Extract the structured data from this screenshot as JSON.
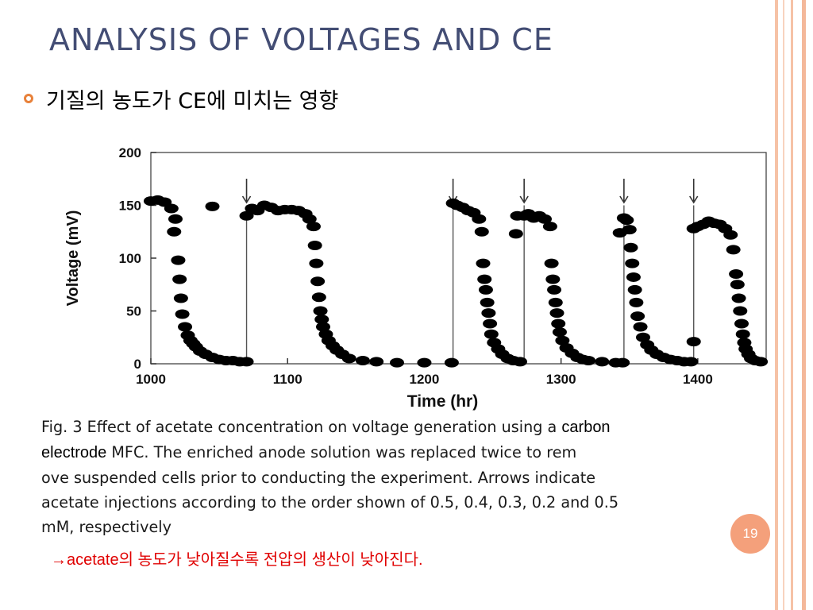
{
  "slide": {
    "title": "ANALYSIS OF VOLTAGES AND CE",
    "bullet": "기질의 농도가 CE에 미치는 영향",
    "caption_part1": "Fig. 3 Effect of acetate concentration on voltage generation using a ",
    "caption_emph1": "carbon",
    "caption_emph2": "electrode",
    "caption_part2": " MFC. The enriched anode solution was replaced twice to rem",
    "caption_part3": "ove suspended cells prior to conducting the experiment. Arrows indicate",
    "caption_part4": "acetate injections according to the order shown of 0.5, 0.4, 0.3, 0.2 and 0.5",
    "caption_part5": "mM, respectively",
    "conclusion_arrow": "→",
    "conclusion_text": "acetate의 농도가 낮아질수록 전압의 생산이 낮아진다.",
    "page_number": "19",
    "accent_color": "#e8813a",
    "title_color": "#434d74",
    "conclusion_color": "#e00000",
    "badge_color": "#f4a07b"
  },
  "chart_data": {
    "type": "scatter",
    "xlabel": "Time (hr)",
    "ylabel": "Voltage (mV)",
    "xlim": [
      1000,
      1450
    ],
    "ylim": [
      0,
      200
    ],
    "xticks": [
      1000,
      1100,
      1200,
      1300,
      1400
    ],
    "yticks": [
      0,
      50,
      100,
      150,
      200
    ],
    "grid": false,
    "injection_arrows_x": [
      1070,
      1221,
      1273,
      1346,
      1397
    ],
    "replacement_lines_x": [
      1070,
      1221,
      1273,
      1346,
      1397
    ],
    "series": [
      {
        "x": [
          1000,
          1005,
          1010,
          1015,
          1018,
          1020,
          1021,
          1022,
          1023,
          1025,
          1027,
          1029,
          1031,
          1033,
          1036,
          1040,
          1045,
          1050,
          1055,
          1060,
          1065,
          1070
        ],
        "y": [
          154,
          155,
          153,
          147,
          137,
          98,
          80,
          62,
          47,
          35,
          27,
          22,
          19,
          16,
          12,
          9,
          6,
          4,
          3,
          3,
          2,
          2
        ]
      },
      {
        "x": [
          1070,
          1074,
          1078,
          1083,
          1088,
          1093,
          1098,
          1103,
          1108,
          1113,
          1116,
          1119,
          1120,
          1121,
          1122,
          1123,
          1124,
          1125,
          1126,
          1128,
          1130,
          1133,
          1136,
          1140,
          1145,
          1155,
          1165,
          1180,
          1200,
          1220
        ],
        "y": [
          140,
          147,
          145,
          150,
          148,
          145,
          146,
          146,
          145,
          142,
          137,
          130,
          112,
          95,
          78,
          63,
          50,
          42,
          35,
          28,
          22,
          17,
          13,
          9,
          5,
          3,
          2,
          1,
          1,
          1
        ]
      },
      {
        "x": [
          1221,
          1224,
          1228,
          1232,
          1236,
          1240,
          1242,
          1243,
          1244,
          1245,
          1246,
          1247,
          1248,
          1249,
          1251,
          1254,
          1257,
          1261,
          1265,
          1270
        ],
        "y": [
          152,
          150,
          148,
          145,
          143,
          137,
          125,
          95,
          80,
          70,
          58,
          48,
          38,
          28,
          20,
          14,
          9,
          5,
          3,
          2
        ]
      },
      {
        "x": [
          1273,
          1276,
          1280,
          1284,
          1288,
          1292,
          1293,
          1294,
          1295,
          1296,
          1297,
          1298,
          1299,
          1301,
          1304,
          1308,
          1312,
          1316,
          1320,
          1330,
          1340,
          1345
        ],
        "y": [
          140,
          142,
          138,
          140,
          137,
          130,
          95,
          80,
          70,
          58,
          48,
          38,
          30,
          22,
          15,
          10,
          6,
          4,
          3,
          2,
          1,
          1
        ]
      },
      {
        "x": [
          1346,
          1348,
          1350,
          1351,
          1352,
          1353,
          1354,
          1355,
          1356,
          1358,
          1360,
          1363,
          1366,
          1370,
          1375,
          1380,
          1385,
          1390,
          1395
        ],
        "y": [
          138,
          136,
          127,
          110,
          95,
          82,
          70,
          58,
          45,
          35,
          25,
          18,
          13,
          9,
          6,
          4,
          3,
          2,
          2
        ]
      },
      {
        "x": [
          1397,
          1400,
          1404,
          1408,
          1412,
          1416,
          1420,
          1424,
          1426,
          1428,
          1429,
          1430,
          1431,
          1432,
          1433,
          1434,
          1435,
          1437,
          1439,
          1442,
          1446
        ],
        "y": [
          128,
          130,
          132,
          135,
          133,
          132,
          128,
          122,
          108,
          85,
          75,
          62,
          50,
          38,
          28,
          20,
          14,
          9,
          5,
          3,
          2
        ]
      },
      {
        "x": [
          1017,
          1045,
          1267,
          1268,
          1343,
          1397
        ],
        "y": [
          125,
          149,
          123,
          140,
          124,
          21
        ]
      }
    ]
  }
}
